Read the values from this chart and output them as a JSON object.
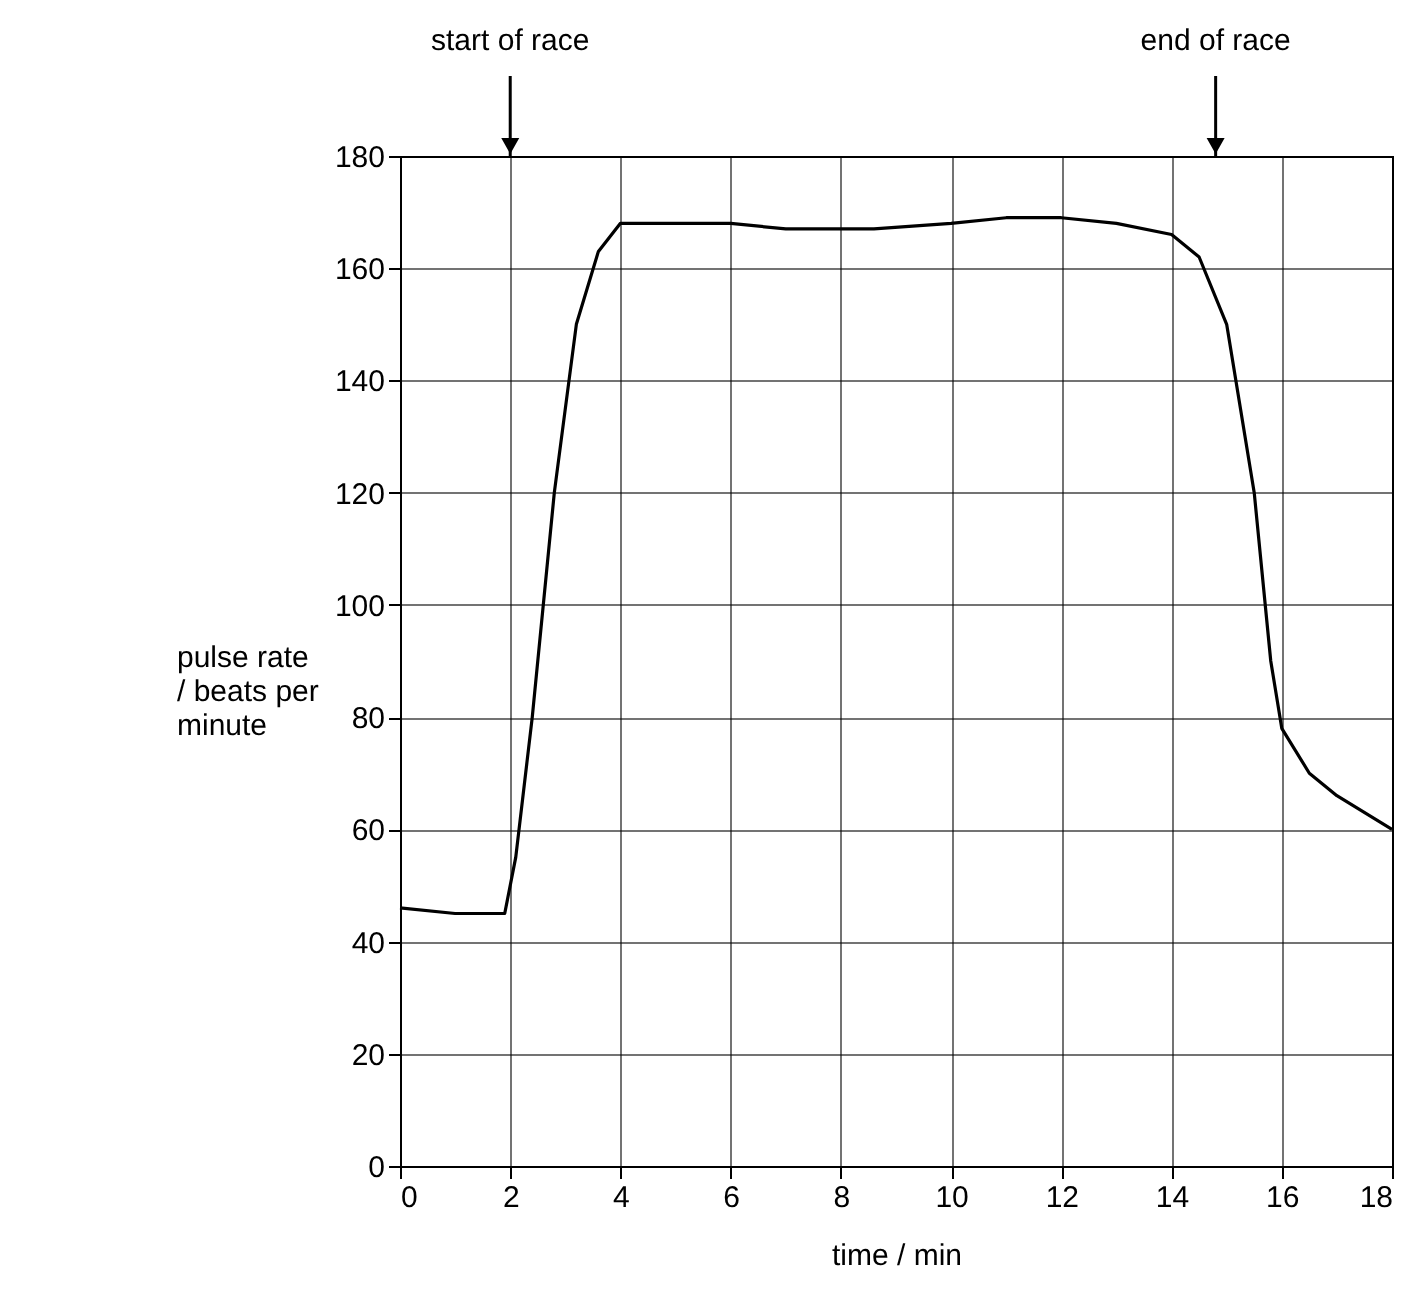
{
  "chart_data": {
    "type": "line",
    "xlabel": "time / min",
    "ylabel": "pulse rate\n/ beats per\nminute",
    "x": [
      0,
      1,
      1.9,
      2.1,
      2.4,
      2.8,
      3.2,
      3.6,
      4,
      5,
      6,
      7,
      8,
      8.6,
      10,
      11,
      12,
      13,
      14,
      14.5,
      15,
      15.5,
      15.8,
      16,
      16.5,
      17,
      18
    ],
    "series": [
      {
        "color": "#000000",
        "values": [
          46,
          45,
          45,
          55,
          80,
          120,
          150,
          163,
          168,
          168,
          168,
          167,
          167,
          167,
          168,
          169,
          169,
          168,
          166,
          162,
          150,
          120,
          90,
          78,
          70,
          66,
          60
        ]
      }
    ],
    "xlim": [
      0,
      18
    ],
    "xticks": [
      0,
      2,
      4,
      6,
      8,
      10,
      12,
      14,
      16,
      18
    ],
    "ylim": [
      0,
      180
    ],
    "yticks": [
      0,
      20,
      40,
      60,
      80,
      100,
      120,
      140,
      160,
      180
    ],
    "grid": true,
    "marker": "none",
    "line_style": "solid",
    "ref_lines": [
      {
        "axis": "x",
        "value": 2,
        "label": "start of race"
      },
      {
        "axis": "x",
        "value": 14.8,
        "label": "end of race"
      }
    ]
  }
}
